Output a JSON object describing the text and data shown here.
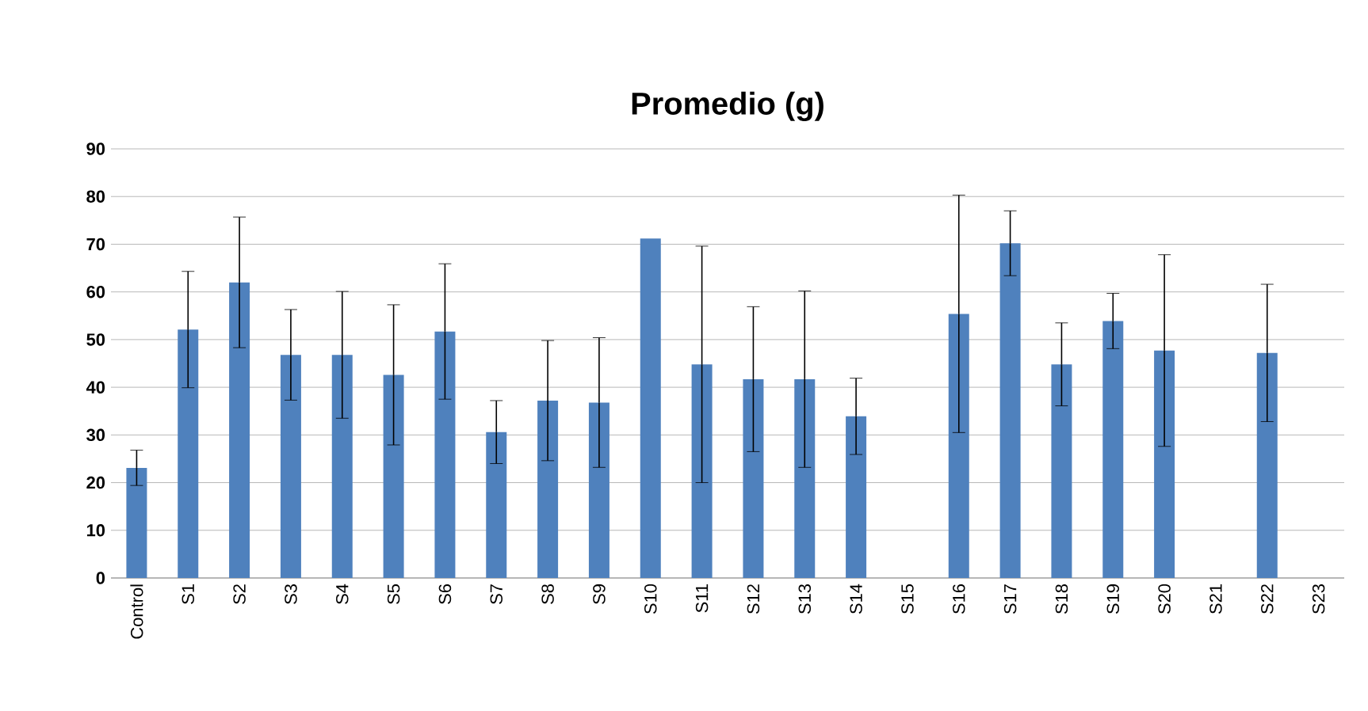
{
  "chart_data": {
    "type": "bar",
    "title": "Promedio (g)",
    "categories": [
      "Control",
      "S1",
      "S2",
      "S3",
      "S4",
      "S5",
      "S6",
      "S7",
      "S8",
      "S9",
      "S10",
      "S11",
      "S12",
      "S13",
      "S14",
      "S15",
      "S16",
      "S17",
      "S18",
      "S19",
      "S20",
      "S21",
      "S22",
      "S23"
    ],
    "values": [
      23.1,
      52.1,
      62,
      46.8,
      46.8,
      42.6,
      51.7,
      30.6,
      37.2,
      36.8,
      71.2,
      44.8,
      41.7,
      41.7,
      33.9,
      null,
      55.4,
      70.2,
      44.8,
      53.9,
      47.7,
      null,
      47.2,
      null
    ],
    "errors": [
      3.7,
      12.2,
      13.7,
      9.5,
      13.3,
      14.7,
      14.2,
      6.6,
      12.6,
      13.6,
      null,
      24.8,
      15.2,
      18.5,
      8,
      null,
      24.9,
      6.8,
      8.7,
      5.8,
      20.1,
      null,
      14.4,
      null
    ],
    "color": "#4f81bd",
    "ylim": [
      0,
      90
    ],
    "yticks": [
      0,
      10,
      20,
      30,
      40,
      50,
      60,
      70,
      80,
      90
    ],
    "grid": "y"
  }
}
